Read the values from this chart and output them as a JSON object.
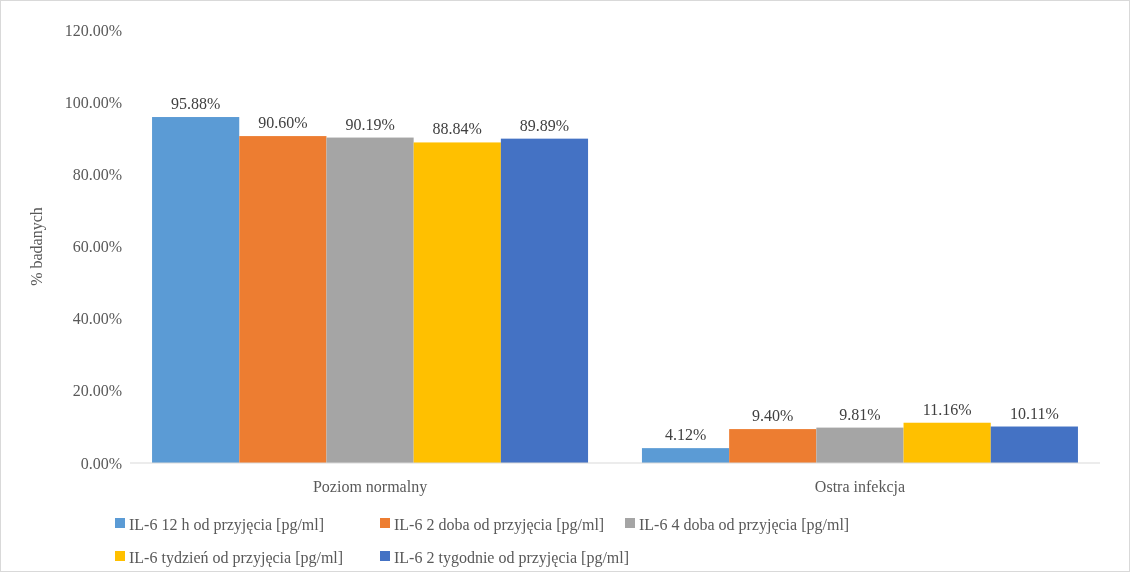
{
  "chart_data": {
    "type": "bar",
    "ylabel": "% badanych",
    "categories": [
      "Poziom normalny",
      "Ostra infekcja"
    ],
    "series": [
      {
        "name": "IL-6 12 h od przyjęcia [pg/ml]",
        "color": "#5b9bd5",
        "values": [
          95.88,
          4.12
        ],
        "value_labels": [
          "95.88%",
          "4.12%"
        ]
      },
      {
        "name": "IL-6 2 doba od przyjęcia [pg/ml]",
        "color": "#ed7d31",
        "values": [
          90.6,
          9.4
        ],
        "value_labels": [
          "90.60%",
          "9.40%"
        ]
      },
      {
        "name": "IL-6 4 doba od przyjęcia [pg/ml]",
        "color": "#a5a5a5",
        "values": [
          90.19,
          9.81
        ],
        "value_labels": [
          "90.19%",
          "9.81%"
        ]
      },
      {
        "name": "IL-6 tydzień od przyjęcia [pg/ml]",
        "color": "#ffc000",
        "values": [
          88.84,
          11.16
        ],
        "value_labels": [
          "88.84%",
          "11.16%"
        ]
      },
      {
        "name": "IL-6 2 tygodnie od przyjęcia [pg/ml]",
        "color": "#4472c4",
        "values": [
          89.89,
          10.11
        ],
        "value_labels": [
          "89.89%",
          "10.11%"
        ]
      }
    ],
    "ylim": [
      0,
      120
    ],
    "yticks": [
      {
        "value": 0,
        "label": "0.00%"
      },
      {
        "value": 20,
        "label": "20.00%"
      },
      {
        "value": 40,
        "label": "40.00%"
      },
      {
        "value": 60,
        "label": "60.00%"
      },
      {
        "value": 80,
        "label": "80.00%"
      },
      {
        "value": 100,
        "label": "100.00%"
      },
      {
        "value": 120,
        "label": "120.00%"
      }
    ],
    "legend": "bottom"
  }
}
